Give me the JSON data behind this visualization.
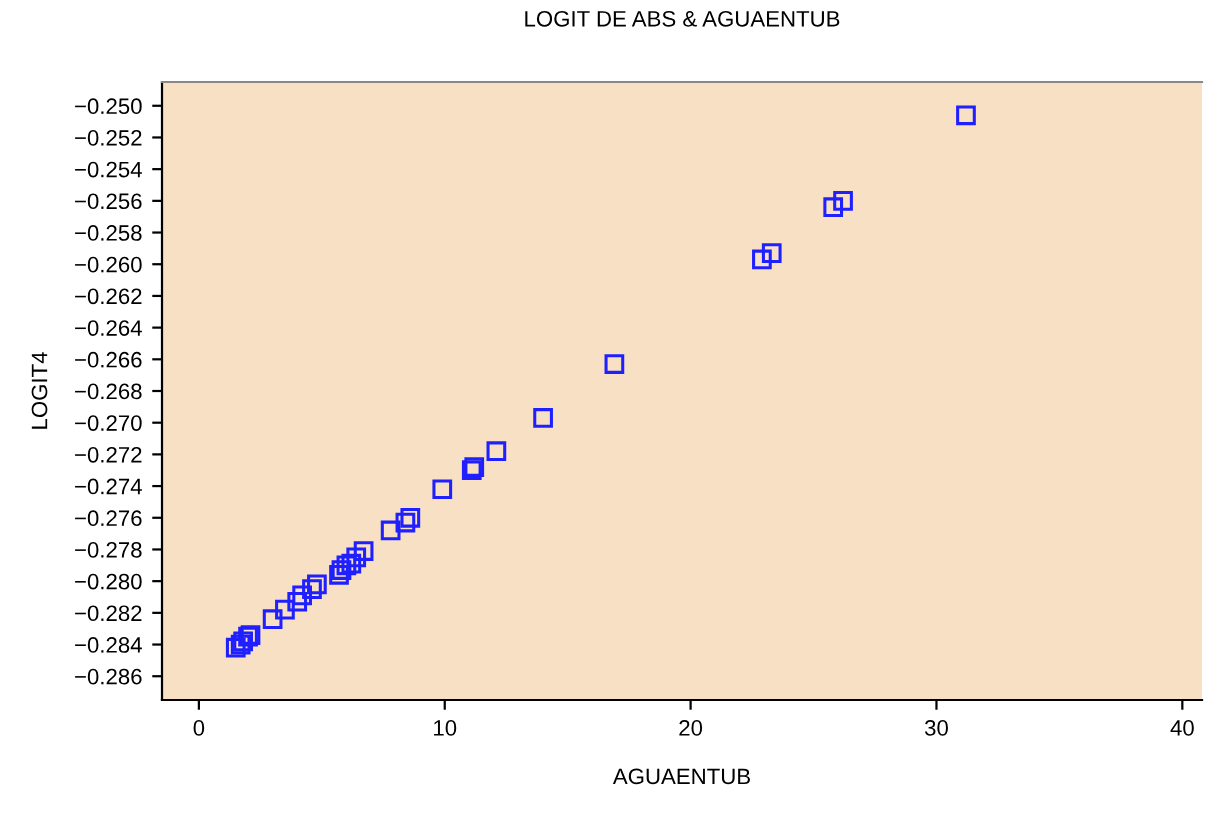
{
  "chart_data": {
    "type": "scatter",
    "title": "LOGIT DE ABS & AGUAENTUB",
    "xlabel": "AGUAENTUB",
    "ylabel": "LOGIT4",
    "marker": "square",
    "grid": false,
    "legend": false,
    "series": [
      {
        "color": "#2020ff",
        "x": [
          31.2,
          26.2,
          25.8,
          23.3,
          22.9,
          16.9,
          14.0,
          12.1,
          11.2,
          11.1,
          9.9,
          8.6,
          8.4,
          7.8,
          6.7,
          6.4,
          6.2,
          6.0,
          5.8,
          5.7,
          4.8,
          4.6,
          4.2,
          4.0,
          3.5,
          3.0,
          2.1,
          2.0,
          1.8,
          1.7,
          1.5
        ],
        "values": [
          -0.2506,
          -0.256,
          -0.2564,
          -0.2593,
          -0.2597,
          -0.2663,
          -0.2697,
          -0.2718,
          -0.2728,
          -0.273,
          -0.2742,
          -0.276,
          -0.2763,
          -0.2768,
          -0.2781,
          -0.2785,
          -0.2789,
          -0.279,
          -0.2793,
          -0.2796,
          -0.2802,
          -0.2805,
          -0.2809,
          -0.2813,
          -0.2818,
          -0.2824,
          -0.2834,
          -0.2835,
          -0.2838,
          -0.284,
          -0.2842
        ]
      }
    ],
    "xlim": [
      -1.5,
      40.8
    ],
    "xticks": [
      0,
      10,
      20,
      30,
      40
    ],
    "ylim": [
      -0.2875,
      -0.2485
    ],
    "yticks": [
      {
        "value": -0.25,
        "label": "−0.250"
      },
      {
        "value": -0.252,
        "label": "−0.252"
      },
      {
        "value": -0.254,
        "label": "−0.254"
      },
      {
        "value": -0.256,
        "label": "−0.256"
      },
      {
        "value": -0.258,
        "label": "−0.258"
      },
      {
        "value": -0.26,
        "label": "−0.260"
      },
      {
        "value": -0.262,
        "label": "−0.262"
      },
      {
        "value": -0.264,
        "label": "−0.264"
      },
      {
        "value": -0.266,
        "label": "−0.266"
      },
      {
        "value": -0.268,
        "label": "−0.268"
      },
      {
        "value": -0.27,
        "label": "−0.270"
      },
      {
        "value": -0.272,
        "label": "−0.272"
      },
      {
        "value": -0.274,
        "label": "−0.274"
      },
      {
        "value": -0.276,
        "label": "−0.276"
      },
      {
        "value": -0.278,
        "label": "−0.278"
      },
      {
        "value": -0.28,
        "label": "−0.280"
      },
      {
        "value": -0.282,
        "label": "−0.282"
      },
      {
        "value": -0.284,
        "label": "−0.284"
      },
      {
        "value": -0.286,
        "label": "−0.286"
      }
    ]
  }
}
